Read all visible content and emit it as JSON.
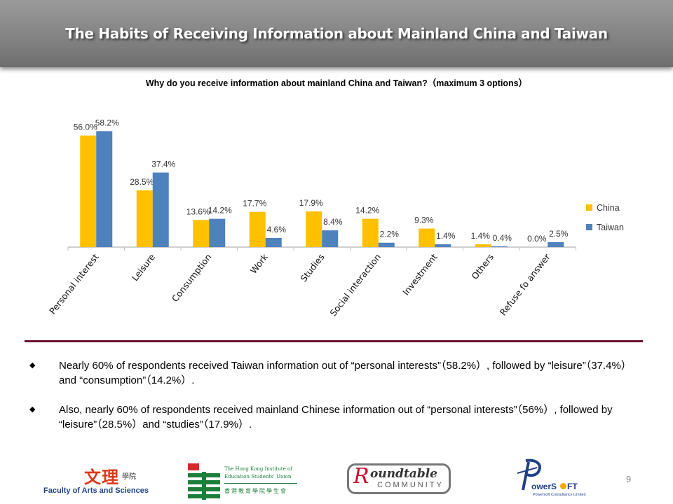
{
  "slide": {
    "title": "The Habits of Receiving Information about Mainland China and Taiwan",
    "page_number": "9"
  },
  "chart_data": {
    "type": "bar",
    "title": "Why do you receive information about mainland China and Taiwan?（maximum 3 options）",
    "categories": [
      "Personal interest",
      "Leisure",
      "Consumption",
      "Work",
      "Studies",
      "Social interaction",
      "Investment",
      "Others",
      "Refuse fo answer"
    ],
    "series": [
      {
        "name": "China",
        "color": "#FFC000",
        "values": [
          56.0,
          28.5,
          13.6,
          17.7,
          17.9,
          14.2,
          9.3,
          1.4,
          0.0
        ],
        "labels": [
          "56.0%",
          "28.5%",
          "13.6%",
          "17.7%",
          "17.9%",
          "14.2%",
          "9.3%",
          "1.4%",
          "0.0%"
        ]
      },
      {
        "name": "Taiwan",
        "color": "#4F81BD",
        "values": [
          58.2,
          37.4,
          14.2,
          4.6,
          8.4,
          2.2,
          1.4,
          0.4,
          2.5
        ],
        "labels": [
          "58.2%",
          "37.4%",
          "14.2%",
          "4.6%",
          "8.4%",
          "2.2%",
          "1.4%",
          "0.4%",
          "2.5%"
        ]
      }
    ],
    "ylim": [
      0,
      65
    ],
    "grid": false,
    "legend": "right"
  },
  "bullets": [
    {
      "marker": "◆",
      "text": "Nearly 60% of respondents received Taiwan information out of “personal interests”（58.2%）, followed by “leisure”（37.4%）and “consumption”（14.2%）."
    },
    {
      "marker": "◆",
      "text": "Also, nearly 60% of respondents received mainland Chinese information out of “personal interests”（56%）, followed by “leisure”（28.5%）and “studies”（17.9%）."
    }
  ],
  "footer": {
    "logo_arts": {
      "cn": "文理",
      "cn_small": "學院",
      "en": "Faculty of Arts and Sciences"
    },
    "logo_hkied": {
      "line1": "The Hong Kong Institute of",
      "line2": "Education Students' Union",
      "cn": "香港教育學院學生會"
    },
    "logo_roundtable": {
      "top": "oundtable",
      "bottom": "COMMUNITY"
    },
    "logo_powersoft": {
      "main": "owerS",
      "main2": "FT",
      "sub": "Powersoft Consultancy Limited"
    }
  }
}
